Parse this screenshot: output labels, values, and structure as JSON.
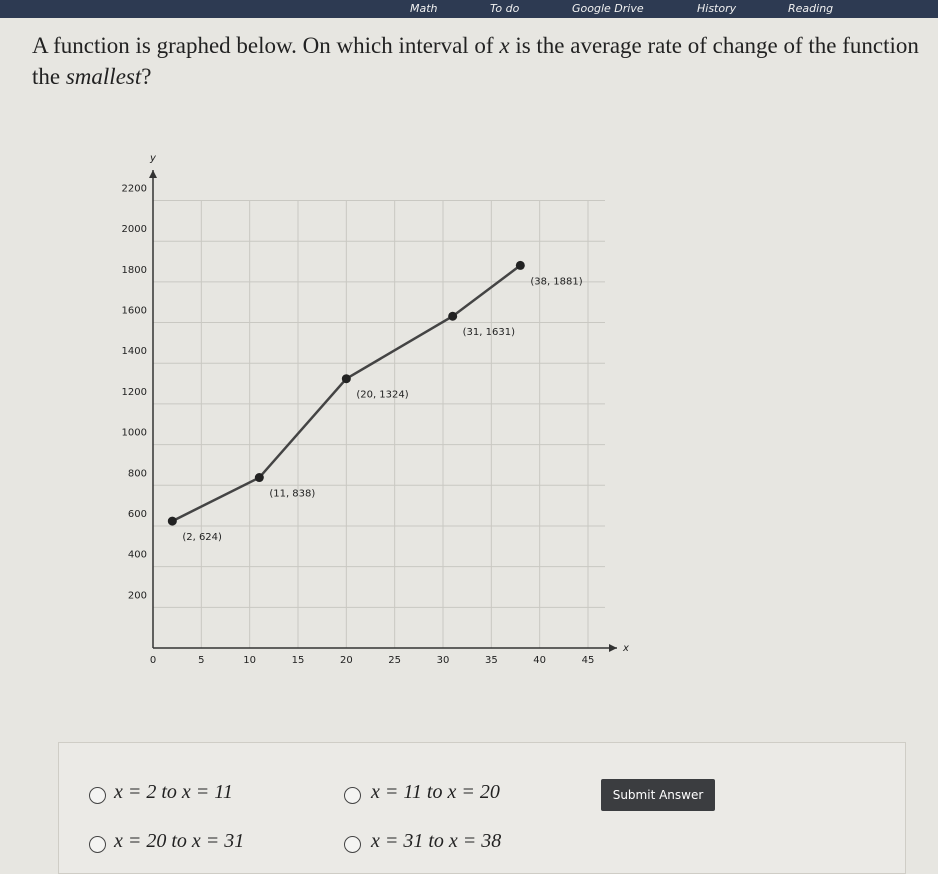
{
  "toolbar": {
    "bookmarks": [
      "Math",
      "To do",
      "Google Drive",
      "History",
      "Reading"
    ]
  },
  "question": {
    "parts": [
      "A function is graphed below. On which interval of ",
      "x",
      " is the average rate of change of the function the ",
      "smallest",
      "?"
    ]
  },
  "graph": {
    "xlabel": "x",
    "ylabel": "y",
    "xlim": [
      0,
      48
    ],
    "ylim": [
      0,
      2350
    ],
    "xticks": [
      0,
      5,
      10,
      15,
      20,
      25,
      30,
      35,
      40,
      45
    ],
    "yticks": [
      200,
      400,
      600,
      800,
      1000,
      1200,
      1400,
      1600,
      1800,
      2000,
      2200
    ],
    "x": [
      2,
      11,
      20,
      31,
      38
    ],
    "y": [
      624,
      838,
      1324,
      1631,
      1881
    ],
    "point_labels": [
      "(2, 624)",
      "(11, 838)",
      "(20, 1324)",
      "(31, 1631)",
      "(38, 1881)"
    ]
  },
  "answers": {
    "options": [
      "x = 2 to x = 11",
      "x = 11 to x = 20",
      "x = 20 to x = 31",
      "x = 31 to x = 38"
    ],
    "submit": "Submit Answer"
  }
}
